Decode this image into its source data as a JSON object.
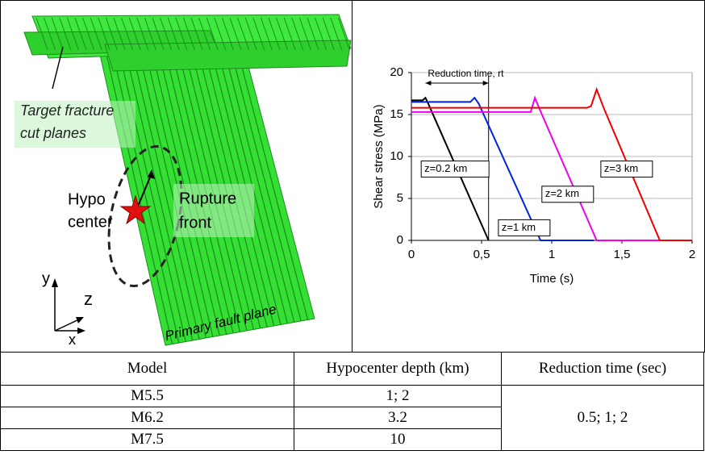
{
  "figure": {
    "target_label": [
      "Target fracture",
      "cut planes"
    ],
    "hypo_label": [
      "Hypo",
      "center"
    ],
    "rupture_label": [
      "Rupture",
      "front"
    ],
    "fault_label": "Primary fault plane",
    "axes": {
      "y": "y",
      "z": "z",
      "x": "x"
    }
  },
  "chart_data": {
    "type": "line",
    "y_label": "Shear stress (MPa)",
    "x_label": "Time (s)",
    "xlim": [
      0,
      2
    ],
    "ylim": [
      0,
      20
    ],
    "xticks": [
      0,
      {
        "value": 0.5,
        "label": "0,5"
      },
      1,
      {
        "value": 1.5,
        "label": "1,5"
      },
      2
    ],
    "yticks": [
      0,
      5,
      10,
      15,
      20
    ],
    "grid": true,
    "annotation": {
      "text": "Reduction time, rt",
      "x": [
        0.1,
        0.55
      ]
    },
    "series": [
      {
        "name": "z=0.2 km",
        "color": "#000000",
        "x": [
          0,
          0.08,
          0.1,
          0.12,
          0.55
        ],
        "values": [
          16.7,
          16.7,
          17,
          16.3,
          0
        ]
      },
      {
        "name": "z=1 km",
        "color": "#0022dd",
        "x": [
          0,
          0.42,
          0.45,
          0.48,
          0.92,
          1.3
        ],
        "values": [
          16.5,
          16.5,
          17,
          16.3,
          0,
          0
        ]
      },
      {
        "name": "z=2 km",
        "color": "#ee00ee",
        "x": [
          0,
          0.85,
          0.88,
          0.92,
          1.32,
          1.8
        ],
        "values": [
          15.3,
          15.3,
          17,
          15.4,
          0,
          0
        ]
      },
      {
        "name": "z=3 km",
        "color": "#ee0000",
        "x": [
          0,
          1.25,
          1.28,
          1.32,
          1.37,
          1.77,
          2
        ],
        "values": [
          15.8,
          15.8,
          16,
          18,
          15.8,
          0,
          0
        ]
      }
    ]
  },
  "table": {
    "header": [
      "Model",
      "Hypocenter depth (km)",
      "Reduction time (sec)"
    ],
    "rows": [
      [
        "M5.5",
        "1; 2"
      ],
      [
        "M6.2",
        "3.2"
      ],
      [
        "M7.5",
        "10"
      ]
    ],
    "reduction_time": "0.5; 1; 2"
  }
}
